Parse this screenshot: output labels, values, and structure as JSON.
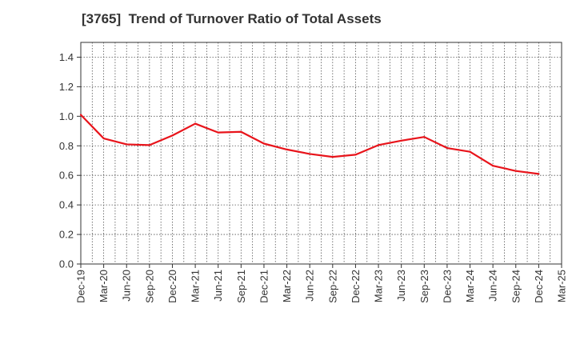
{
  "chart_data": {
    "type": "line",
    "title": "[3765]  Trend of Turnover Ratio of Total Assets",
    "xlabel": "",
    "ylabel": "",
    "ylim": [
      0,
      1.5
    ],
    "yticks": [
      "0.0",
      "0.2",
      "0.4",
      "0.6",
      "0.8",
      "1.0",
      "1.2",
      "1.4"
    ],
    "categories": [
      "Dec-19",
      "Mar-20",
      "Jun-20",
      "Sep-20",
      "Dec-20",
      "Mar-21",
      "Jun-21",
      "Sep-21",
      "Dec-21",
      "Mar-22",
      "Jun-22",
      "Sep-22",
      "Dec-22",
      "Mar-23",
      "Jun-23",
      "Sep-23",
      "Dec-23",
      "Mar-24",
      "Jun-24",
      "Sep-24",
      "Dec-24",
      "Mar-25"
    ],
    "series": [
      {
        "values": [
          1.01,
          0.85,
          0.81,
          0.805,
          0.87,
          0.95,
          0.89,
          0.895,
          0.815,
          0.775,
          0.745,
          0.725,
          0.74,
          0.805,
          0.835,
          0.86,
          0.785,
          0.76,
          0.665,
          0.63,
          0.61,
          null
        ]
      }
    ],
    "grid": true,
    "legend": "none",
    "line_color": "#e8141b"
  }
}
